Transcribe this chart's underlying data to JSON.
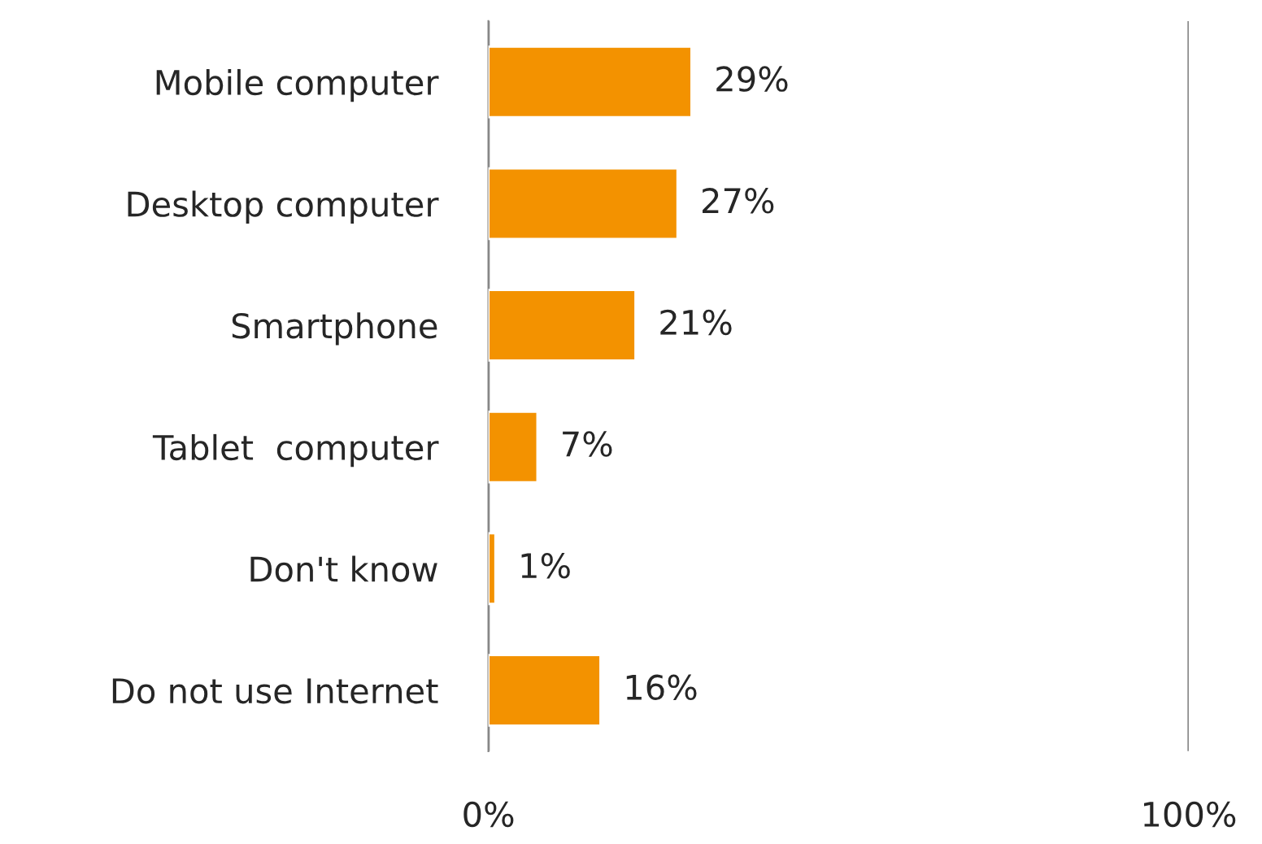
{
  "chart_data": {
    "type": "bar",
    "orientation": "horizontal",
    "categories": [
      "Mobile computer",
      "Desktop computer",
      "Smartphone",
      "Tablet  computer",
      "Don't know",
      "Do not use Internet"
    ],
    "values": [
      29,
      27,
      21,
      7,
      1,
      16
    ],
    "value_labels": [
      "29%",
      "27%",
      "21%",
      "7%",
      "1%",
      "16%"
    ],
    "color": "#f39200",
    "xlim": [
      0,
      100
    ],
    "xticks": [
      {
        "value": 0,
        "label": "0%"
      },
      {
        "value": 100,
        "label": "100%"
      }
    ],
    "grid": "x"
  }
}
